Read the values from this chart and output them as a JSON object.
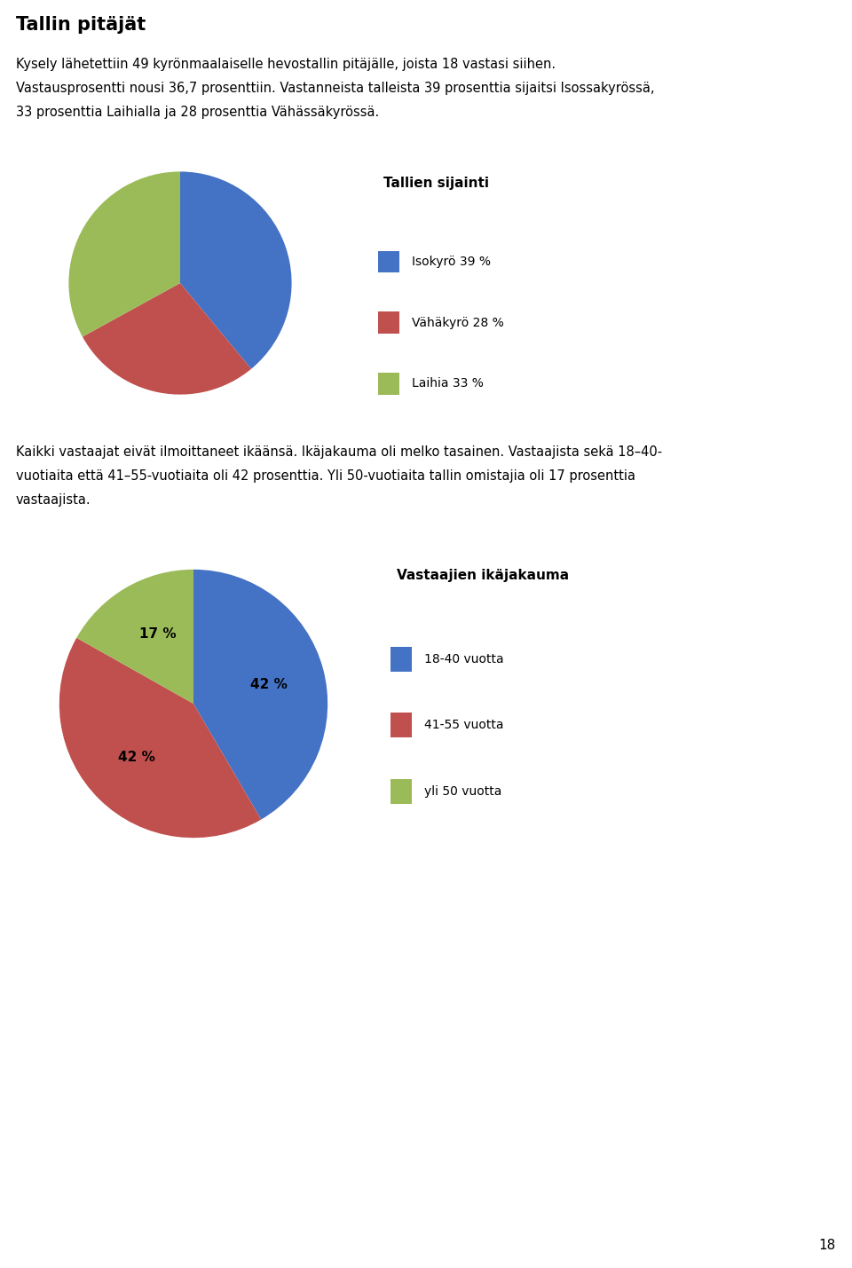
{
  "title_main": "Tallin pitäjät",
  "intro_line1": "Kysely lähetettiin 49 kyrönmaalaiselle hevostallin pitäjälle, joista 18 vastasi siihen.",
  "intro_line2": "Vastausprosentti nousi 36,7 prosenttiin. Vastanneista talleista 39 prosenttia sijaitsi Isossakyrössä,",
  "intro_line3": "33 prosenttia Laihialla ja 28 prosenttia Vähässäkyrössä.",
  "chart1_title": "Tallien sijainti",
  "chart1_values": [
    39,
    28,
    33
  ],
  "chart1_labels": [
    "Isokyrö 39 %",
    "Vähäkyrö 28 %",
    "Laihia 33 %"
  ],
  "chart1_colors": [
    "#4472C4",
    "#C0504D",
    "#9BBB59"
  ],
  "chart1_startangle": 90,
  "mid_line1": "Kaikki vastaajat eivät ilmoittaneet ikäänsä. Ikäjakauma oli melko tasainen. Vastaajista sekä 18–40-",
  "mid_line2": "vuotiaita että 41–55-vuotiaita oli 42 prosenttia. Yli 50-vuotiaita tallin omistajia oli 17 prosenttia",
  "mid_line3": "vastaajista.",
  "chart2_title": "Vastaajien ikäjakauma",
  "chart2_values": [
    42,
    42,
    17
  ],
  "chart2_labels": [
    "18-40 vuotta",
    "41-55 vuotta",
    "yli 50 vuotta"
  ],
  "chart2_colors": [
    "#4472C4",
    "#C0504D",
    "#9BBB59"
  ],
  "chart2_startangle": 90,
  "page_number": "18",
  "background_color": "#FFFFFF",
  "text_color": "#000000",
  "border_color": "#AAAAAA"
}
